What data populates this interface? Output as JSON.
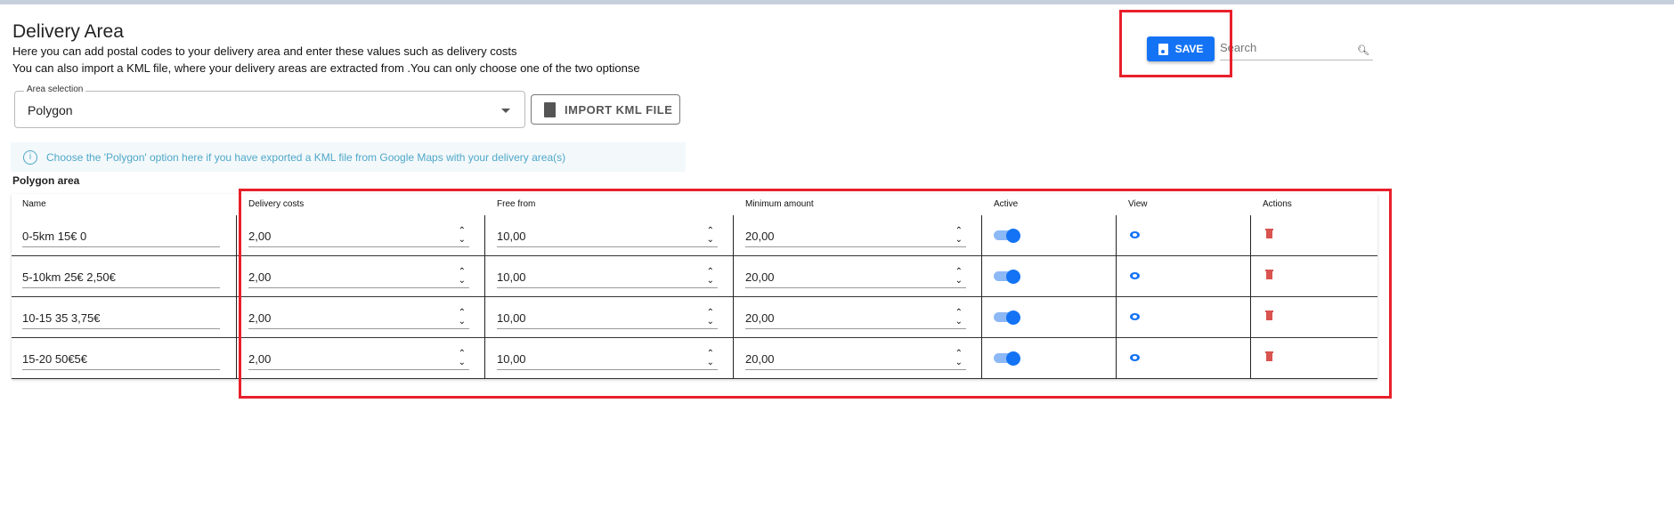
{
  "header": {
    "title": "Delivery Area",
    "description_1": "Here you can add postal codes to your delivery area and enter these values such as delivery costs",
    "description_2": "You can also import a KML file, where your delivery areas are extracted from .You can only choose one of the two optionse"
  },
  "area_selection": {
    "label": "Area selection",
    "value": "Polygon"
  },
  "import_button": "IMPORT KML FILE",
  "info": "Choose the 'Polygon' option here if you have exported a KML file from Google Maps with your delivery area(s)",
  "section_title": "Polygon area",
  "toolbar": {
    "save_label": "SAVE",
    "search_placeholder": "Search"
  },
  "colors": {
    "primary": "#1473f5",
    "danger": "#d9534f",
    "annotation": "#e8202a"
  },
  "table": {
    "columns": [
      "Name",
      "Delivery costs",
      "Free from",
      "Minimum amount",
      "Active",
      "View",
      "Actions"
    ],
    "rows": [
      {
        "name": "0-5km 15€ 0",
        "delivery_costs": "2,00",
        "free_from": "10,00",
        "minimum_amount": "20,00",
        "active": true
      },
      {
        "name": "5-10km 25€ 2,50€",
        "delivery_costs": "2,00",
        "free_from": "10,00",
        "minimum_amount": "20,00",
        "active": true
      },
      {
        "name": "10-15 35 3,75€",
        "delivery_costs": "2,00",
        "free_from": "10,00",
        "minimum_amount": "20,00",
        "active": true
      },
      {
        "name": "15-20 50€5€",
        "delivery_costs": "2,00",
        "free_from": "10,00",
        "minimum_amount": "20,00",
        "active": true
      }
    ]
  }
}
